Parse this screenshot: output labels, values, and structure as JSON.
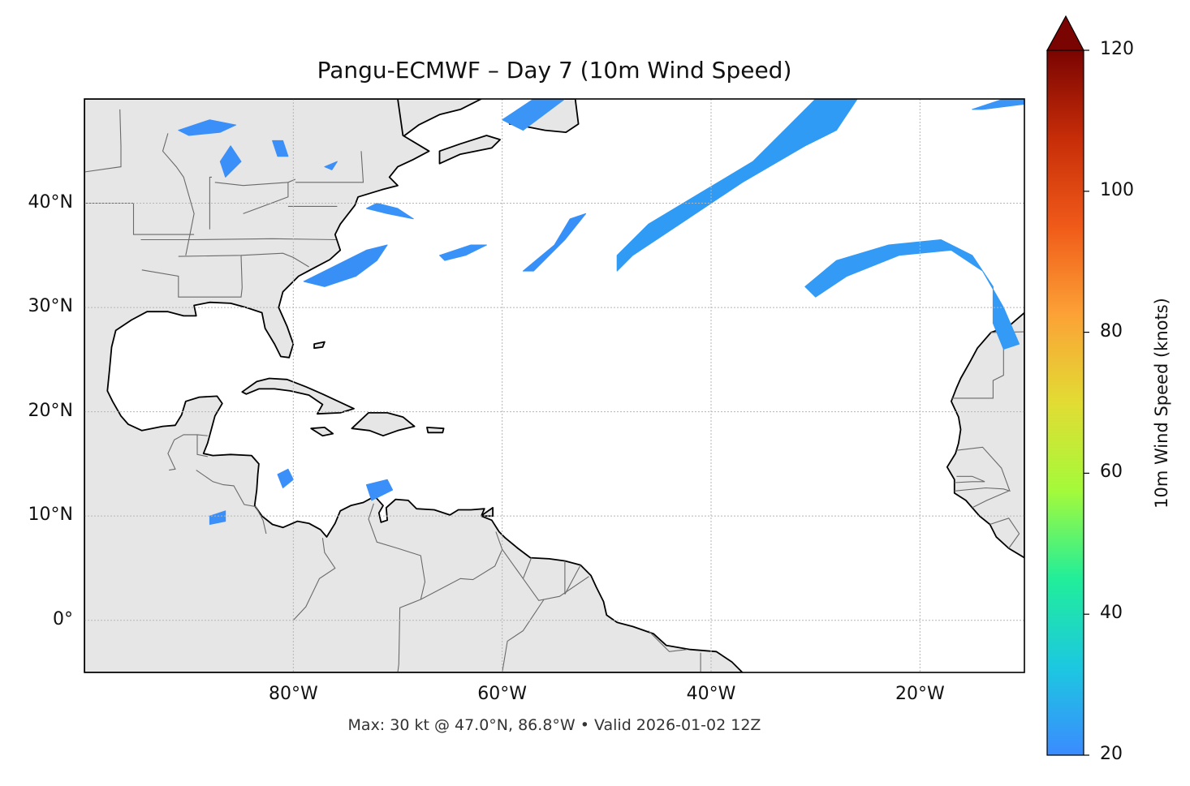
{
  "title": "Pangu-ECMWF – Day 7 (10m Wind Speed)",
  "subtitle": "Max: 30 kt @ 47.0°N, 86.8°W • Valid 2026-01-02 12Z",
  "map": {
    "lon_range": [
      -100,
      -10
    ],
    "lat_range": [
      -5,
      50
    ],
    "gridlines": true,
    "land_color": "#e6e6e6",
    "coast_color": "#000000",
    "border_color": "#6a6a6a",
    "lat_ticks": [
      {
        "value": 40,
        "label": "40°N"
      },
      {
        "value": 30,
        "label": "30°N"
      },
      {
        "value": 20,
        "label": "20°N"
      },
      {
        "value": 10,
        "label": "10°N"
      },
      {
        "value": 0,
        "label": "0°"
      }
    ],
    "lon_ticks": [
      {
        "value": -80,
        "label": "80°W"
      },
      {
        "value": -60,
        "label": "60°W"
      },
      {
        "value": -40,
        "label": "40°W"
      },
      {
        "value": -20,
        "label": "20°W"
      }
    ]
  },
  "colorbar": {
    "label": "10m Wind Speed (knots)",
    "min": 20,
    "max": 120,
    "extend": "max",
    "ticks": [
      {
        "value": 20,
        "label": "20"
      },
      {
        "value": 40,
        "label": "40"
      },
      {
        "value": 60,
        "label": "60"
      },
      {
        "value": 80,
        "label": "80"
      },
      {
        "value": 100,
        "label": "100"
      },
      {
        "value": 120,
        "label": "120"
      }
    ],
    "colors": [
      "#3b8bff",
      "#1cc8e0",
      "#21ee9a",
      "#a4fa3a",
      "#e2dc34",
      "#fca236",
      "#f05a19",
      "#c72d08",
      "#7a0402"
    ]
  },
  "wind_areas": [
    {
      "name": "north-atlantic-jet",
      "color": "#2f9bf5",
      "points": [
        [
          -49,
          35
        ],
        [
          -46,
          38
        ],
        [
          -41,
          41
        ],
        [
          -36,
          44
        ],
        [
          -33,
          47
        ],
        [
          -30,
          50
        ],
        [
          -26,
          50
        ],
        [
          -28,
          47
        ],
        [
          -31,
          45.5
        ],
        [
          -37,
          42
        ],
        [
          -43,
          38
        ],
        [
          -47.5,
          35
        ],
        [
          -49,
          33.5
        ]
      ]
    },
    {
      "name": "mid-atlantic-streak",
      "color": "#3690f8",
      "points": [
        [
          -58,
          33.5
        ],
        [
          -55,
          36
        ],
        [
          -53.5,
          38.5
        ],
        [
          -52,
          39
        ],
        [
          -54,
          36.5
        ],
        [
          -57,
          33.5
        ]
      ]
    },
    {
      "name": "eastern-atlantic-arc",
      "color": "#339af6",
      "points": [
        [
          -31,
          32
        ],
        [
          -28,
          34.5
        ],
        [
          -23,
          36
        ],
        [
          -18,
          36.5
        ],
        [
          -15,
          35
        ],
        [
          -13,
          32
        ],
        [
          -13,
          28.5
        ],
        [
          -12,
          26
        ],
        [
          -10.5,
          26.5
        ],
        [
          -12,
          30
        ],
        [
          -14,
          33.5
        ],
        [
          -17,
          35.5
        ],
        [
          -22,
          35
        ],
        [
          -27,
          33
        ],
        [
          -30,
          31
        ]
      ]
    },
    {
      "name": "off-carolinas",
      "color": "#3890f7",
      "points": [
        [
          -79,
          32.5
        ],
        [
          -76,
          34
        ],
        [
          -73,
          35.5
        ],
        [
          -71,
          36
        ],
        [
          -72,
          34.5
        ],
        [
          -74,
          33
        ],
        [
          -77,
          32
        ]
      ]
    },
    {
      "name": "off-new-england",
      "color": "#3892f7",
      "points": [
        [
          -73,
          39.5
        ],
        [
          -71,
          39
        ],
        [
          -68.5,
          38.5
        ],
        [
          -70,
          39.5
        ],
        [
          -72,
          40
        ]
      ]
    },
    {
      "name": "atlantic-patch",
      "color": "#3892f7",
      "points": [
        [
          -66,
          35
        ],
        [
          -63,
          36
        ],
        [
          -61.5,
          36
        ],
        [
          -63.5,
          35
        ],
        [
          -65.5,
          34.5
        ]
      ]
    },
    {
      "name": "great-lakes-1",
      "color": "#3b8ff8",
      "points": [
        [
          -91,
          47
        ],
        [
          -88,
          48
        ],
        [
          -85.5,
          47.5
        ],
        [
          -87,
          46.8
        ],
        [
          -90,
          46.5
        ]
      ]
    },
    {
      "name": "great-lakes-2",
      "color": "#3b8ff8",
      "points": [
        [
          -87,
          44
        ],
        [
          -86,
          45.5
        ],
        [
          -85,
          44
        ],
        [
          -86.5,
          42.5
        ]
      ]
    },
    {
      "name": "great-lakes-3",
      "color": "#3b8ff8",
      "points": [
        [
          -82,
          46
        ],
        [
          -81,
          46
        ],
        [
          -80.5,
          44.5
        ],
        [
          -81.5,
          44.5
        ]
      ]
    },
    {
      "name": "great-lakes-4",
      "color": "#3b8ff8",
      "points": [
        [
          -77,
          43.5
        ],
        [
          -75.8,
          44
        ],
        [
          -76.3,
          43.2
        ]
      ]
    },
    {
      "name": "eastern-canada-sea",
      "color": "#3a95f7",
      "points": [
        [
          -60,
          48
        ],
        [
          -57,
          50
        ],
        [
          -54,
          50
        ],
        [
          -58,
          47
        ]
      ]
    },
    {
      "name": "far-ne-patch",
      "color": "#3a95f7",
      "points": [
        [
          -15,
          49
        ],
        [
          -12,
          50
        ],
        [
          -10,
          50
        ],
        [
          -10,
          49.5
        ],
        [
          -14,
          49
        ]
      ]
    },
    {
      "name": "caribbean-1",
      "color": "#3b8ff8",
      "points": [
        [
          -73,
          13
        ],
        [
          -71,
          13.5
        ],
        [
          -70.5,
          12.5
        ],
        [
          -72.5,
          11.5
        ]
      ]
    },
    {
      "name": "caribbean-2",
      "color": "#3b8ff8",
      "points": [
        [
          -81.5,
          14
        ],
        [
          -80.5,
          14.5
        ],
        [
          -80,
          13.5
        ],
        [
          -81,
          12.7
        ]
      ]
    },
    {
      "name": "pacific-patch",
      "color": "#3b8ff8",
      "points": [
        [
          -88,
          10
        ],
        [
          -86.5,
          10.5
        ],
        [
          -86.5,
          9.5
        ],
        [
          -88,
          9.2
        ]
      ]
    }
  ]
}
